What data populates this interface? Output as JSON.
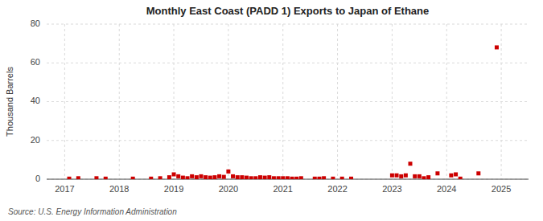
{
  "chart_data": {
    "type": "scatter",
    "title": "Monthly East Coast (PADD 1) Exports to Japan of Ethane",
    "y_label": "Thousand Barrels",
    "source": "Source: U.S. Energy Information Administration",
    "color": "#cc0000",
    "marker": "square",
    "grid": true,
    "xlim": [
      2016.67,
      2025.5
    ],
    "xticks": [
      2017,
      2018,
      2019,
      2020,
      2021,
      2022,
      2023,
      2024,
      2025
    ],
    "ylim": [
      0,
      80
    ],
    "yticks": [
      0,
      20,
      40,
      60,
      80
    ],
    "x": [
      2017.083,
      2017.25,
      2017.583,
      2017.75,
      2018.25,
      2018.583,
      2018.75,
      2018.917,
      2019.0,
      2019.083,
      2019.167,
      2019.25,
      2019.333,
      2019.417,
      2019.5,
      2019.583,
      2019.667,
      2019.75,
      2019.833,
      2019.917,
      2020.0,
      2020.083,
      2020.167,
      2020.25,
      2020.333,
      2020.417,
      2020.5,
      2020.583,
      2020.667,
      2020.75,
      2020.833,
      2020.917,
      2021.0,
      2021.083,
      2021.167,
      2021.25,
      2021.333,
      2021.583,
      2021.667,
      2021.75,
      2021.917,
      2022.083,
      2022.25,
      2023.0,
      2023.083,
      2023.167,
      2023.25,
      2023.333,
      2023.417,
      2023.5,
      2023.583,
      2023.667,
      2023.833,
      2024.083,
      2024.167,
      2024.25,
      2024.583,
      2024.917
    ],
    "values": [
      0.3,
      0.5,
      0.5,
      0.3,
      0.3,
      0.3,
      0.5,
      1.0,
      2.5,
      1.5,
      0.8,
      0.5,
      1.5,
      1.0,
      1.5,
      1.0,
      0.8,
      1.0,
      1.5,
      1.2,
      4.0,
      1.5,
      1.0,
      1.0,
      0.8,
      0.5,
      0.5,
      1.0,
      0.8,
      1.0,
      0.5,
      0.5,
      0.5,
      0.5,
      0.3,
      0.3,
      0.5,
      0.3,
      0.3,
      0.5,
      0.3,
      0.3,
      0.3,
      2.0,
      2.0,
      1.5,
      2.0,
      8.0,
      1.5,
      1.5,
      0.5,
      1.0,
      3.0,
      2.0,
      2.5,
      0.3,
      3.0,
      68.0
    ]
  }
}
